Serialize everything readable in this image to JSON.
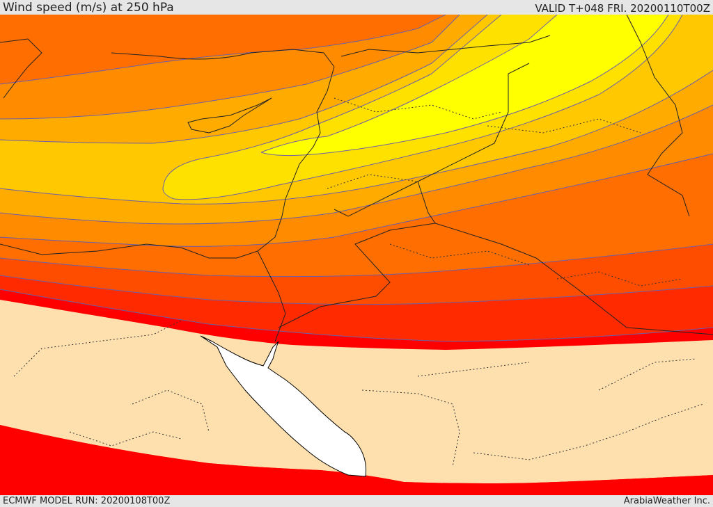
{
  "header": {
    "title": "Wind speed (m/s) at 250 hPa",
    "valid": "VALID T+048 FRI. 20200110T00Z"
  },
  "footer": {
    "model_run": "ECMWF MODEL RUN: 20200108T00Z",
    "credit": "ArabiaWeather Inc."
  },
  "map": {
    "variable": "wind speed",
    "units": "m/s",
    "pressure_level": "250 hPa",
    "colors": {
      "below_threshold": "#fde0ae",
      "band_1": "#ff0000",
      "band_2": "#ff2a00",
      "band_3": "#ff4d00",
      "band_4": "#ff6e00",
      "band_5": "#ff8c00",
      "band_6": "#ffab00",
      "band_7": "#ffc800",
      "band_8": "#ffe100",
      "band_9": "#ffff00",
      "sea_mask": "#ffffff",
      "contour": "#6b5fa8",
      "coastline": "#000000",
      "border": "#222222"
    }
  }
}
